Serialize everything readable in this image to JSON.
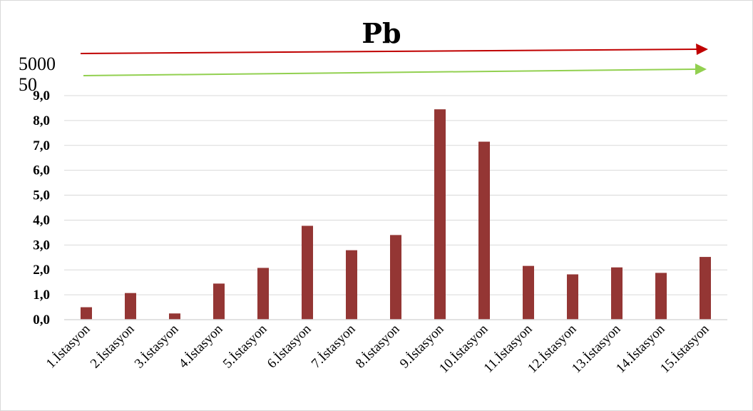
{
  "chart_data": {
    "type": "bar",
    "title": "Pb",
    "categories": [
      "1.İstasyon",
      "2.İstasyon",
      "3.İstasyon",
      "4.İstasyon",
      "5.İstasyon",
      "6.İstasyon",
      "7.İstasyon",
      "8.İstasyon",
      "9.İstasyon",
      "10.İstasyon",
      "11.İstasyon",
      "12.İstasyon",
      "13.İstasyon",
      "14.İstasyon",
      "15.İstasyon"
    ],
    "values": [
      0.5,
      1.07,
      0.25,
      1.45,
      2.08,
      3.77,
      2.79,
      3.4,
      8.45,
      7.15,
      2.16,
      1.82,
      2.1,
      1.88,
      2.52
    ],
    "ylim": [
      0,
      9
    ],
    "yticks": [
      "0,0",
      "1,0",
      "2,0",
      "3,0",
      "4,0",
      "5,0",
      "6,0",
      "7,0",
      "8,0",
      "9,0"
    ],
    "xlabel": "",
    "ylabel": "",
    "grid": true,
    "bar_color": "#943634",
    "reference_lines": [
      {
        "label": "5000",
        "color": "#c00000"
      },
      {
        "label": "50",
        "color": "#92d050"
      }
    ]
  }
}
